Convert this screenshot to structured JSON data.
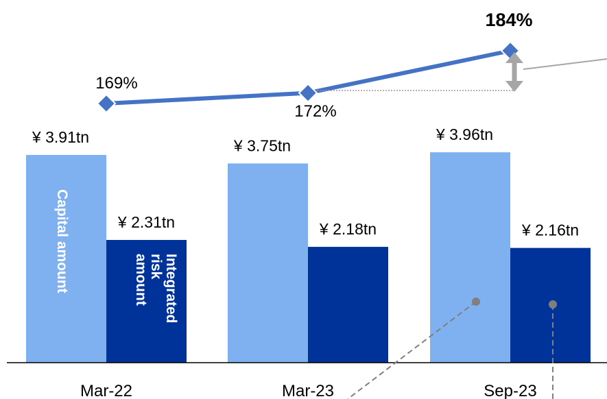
{
  "chart_data": {
    "type": "bar",
    "categories": [
      "Mar-22",
      "Mar-23",
      "Sep-23"
    ],
    "series": [
      {
        "name": "Capital amount",
        "values": [
          3.91,
          3.75,
          3.96
        ],
        "labels": [
          "¥ 3.91tn",
          "¥ 3.75tn",
          "¥ 3.96tn"
        ],
        "color": "#7fb0f0"
      },
      {
        "name": "Integrated risk amount",
        "name_lines": [
          "Integrated",
          "risk",
          "amount"
        ],
        "values": [
          2.31,
          2.18,
          2.16
        ],
        "labels": [
          "¥ 2.31tn",
          "¥ 2.18tn",
          "¥ 2.16tn"
        ],
        "color": "#003399"
      }
    ],
    "ratio_line": {
      "values": [
        169,
        172,
        184
      ],
      "labels": [
        "169%",
        "172%",
        "184%"
      ],
      "color": "#4472c4"
    },
    "ylim": [
      0,
      4.5
    ],
    "grid": false,
    "legend": "none",
    "title": "",
    "xlabel": "",
    "ylabel": ""
  }
}
